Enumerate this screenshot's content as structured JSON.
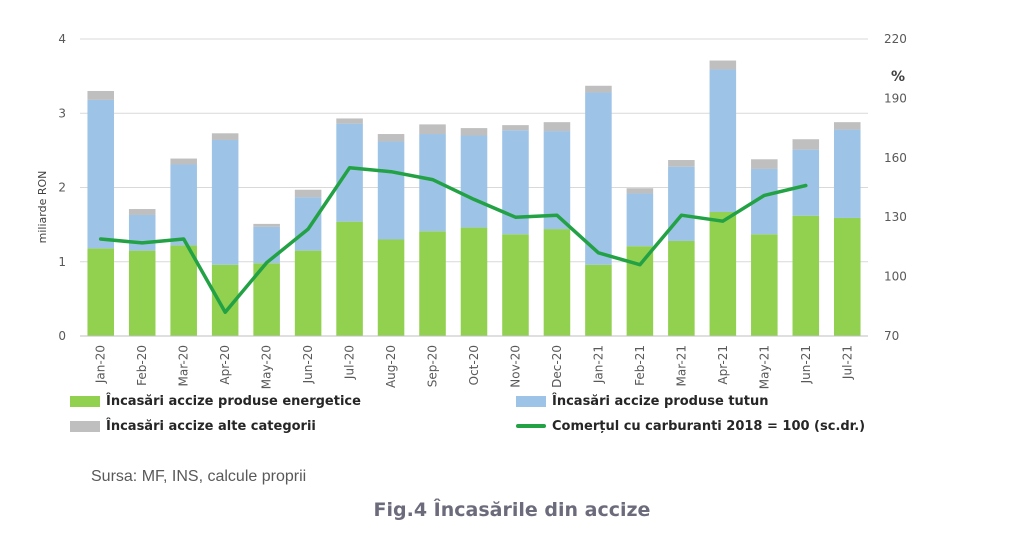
{
  "chart_data": {
    "type": "bar",
    "stacked": true,
    "categories": [
      "Jan-20",
      "Feb-20",
      "Mar-20",
      "Apr-20",
      "May-20",
      "Jun-20",
      "Jul-20",
      "Aug-20",
      "Sep-20",
      "Oct-20",
      "Nov-20",
      "Dec-20",
      "Jan-21",
      "Feb-21",
      "Mar-21",
      "Apr-21",
      "May-21",
      "Jun-21",
      "Jul-21"
    ],
    "series": [
      {
        "name": "Încasări accize produse energetice",
        "type": "bar",
        "axis": "left",
        "color": "#92d050",
        "values": [
          1.18,
          1.15,
          1.22,
          0.96,
          0.98,
          1.15,
          1.54,
          1.3,
          1.41,
          1.46,
          1.37,
          1.44,
          0.96,
          1.21,
          1.28,
          1.67,
          1.37,
          1.62,
          1.59
        ]
      },
      {
        "name": "Încasări accize produse tutun",
        "type": "bar",
        "axis": "left",
        "color": "#9dc3e6",
        "values": [
          2.0,
          0.48,
          1.09,
          1.68,
          0.49,
          0.72,
          1.32,
          1.32,
          1.31,
          1.24,
          1.4,
          1.32,
          2.32,
          0.71,
          1.0,
          1.92,
          0.88,
          0.89,
          1.19
        ]
      },
      {
        "name": "Încasări accize alte categorii",
        "type": "bar",
        "axis": "left",
        "color": "#bfbfbf",
        "values": [
          0.12,
          0.08,
          0.08,
          0.09,
          0.04,
          0.1,
          0.07,
          0.1,
          0.13,
          0.1,
          0.07,
          0.12,
          0.09,
          0.07,
          0.09,
          0.12,
          0.13,
          0.14,
          0.1
        ]
      },
      {
        "name": "Comerțul cu carburanti 2018 = 100 (sc.dr.)",
        "type": "line",
        "axis": "right",
        "color": "#22a244",
        "values": [
          119,
          117,
          119,
          82,
          107,
          124,
          155,
          153,
          149,
          139,
          130,
          131,
          112,
          106,
          131,
          128,
          141,
          146,
          null
        ]
      }
    ],
    "y_left": {
      "label": "miliarde RON",
      "min": 0,
      "max": 4,
      "ticks": [
        0,
        1,
        2,
        3,
        4
      ]
    },
    "y_right": {
      "label": "%",
      "min": 70,
      "max": 220,
      "ticks": [
        70,
        100,
        130,
        160,
        190,
        220
      ]
    },
    "grid": true,
    "legend_position": "bottom"
  },
  "legend": {
    "energetice": "Încasări accize produse energetice",
    "tutun": "Încasări accize produse tutun",
    "alte": "Încasări accize alte categorii",
    "carburanti": "Comerțul cu carburanti 2018 = 100 (sc.dr.)"
  },
  "source": "Sursa: MF, INS, calcule proprii",
  "caption": "Fig.4 Încasările din accize"
}
